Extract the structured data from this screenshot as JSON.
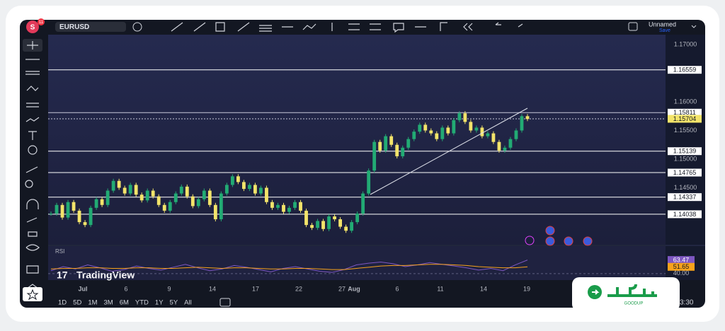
{
  "toolbar": {
    "avatar": "S",
    "badge": "11",
    "symbol": "EURUSD",
    "layout_name": "Unnamed",
    "save": "Save"
  },
  "chart_data": {
    "type": "candlestick",
    "up_color": "#22ab74",
    "down_color": "#f3e46a",
    "values": [
      1.1405,
      1.142,
      1.1398,
      1.1425,
      1.141,
      1.139,
      1.1385,
      1.1415,
      1.143,
      1.142,
      1.1445,
      1.1462,
      1.145,
      1.144,
      1.1455,
      1.1438,
      1.1428,
      1.1445,
      1.1435,
      1.142,
      1.141,
      1.1425,
      1.144,
      1.1452,
      1.1435,
      1.1418,
      1.143,
      1.1445,
      1.142,
      1.1395,
      1.144,
      1.1455,
      1.147,
      1.146,
      1.1448,
      1.1455,
      1.144,
      1.145,
      1.1425,
      1.1415,
      1.142,
      1.1408,
      1.1415,
      1.1425,
      1.141,
      1.1385,
      1.138,
      1.1392,
      1.1378,
      1.14,
      1.1395,
      1.1382,
      1.1375,
      1.139,
      1.1405,
      1.144,
      1.148,
      1.153,
      1.1515,
      1.154,
      1.1525,
      1.1505,
      1.152,
      1.1535,
      1.1548,
      1.156,
      1.155,
      1.1545,
      1.1535,
      1.1555,
      1.1545,
      1.1568,
      1.158,
      1.1565,
      1.155,
      1.1555,
      1.154,
      1.1545,
      1.153,
      1.1515,
      1.152,
      1.1535,
      1.155,
      1.1575,
      1.157
    ],
    "ylim": [
      1.13506,
      1.17173
    ],
    "yticks": [
      {
        "value": 1.17,
        "label": "1.17000"
      },
      {
        "value": 1.16,
        "label": "1.16000"
      },
      {
        "value": 1.155,
        "label": "1.15500"
      },
      {
        "value": 1.15,
        "label": "1.15000"
      },
      {
        "value": 1.145,
        "label": "1.14500"
      }
    ],
    "levels": [
      1.16559,
      1.15811,
      1.15704,
      1.15139,
      1.14765,
      1.14337,
      1.14038
    ],
    "x_labels": [
      "Jul",
      "6",
      "9",
      "14",
      "17",
      "22",
      "27",
      "Aug",
      "6",
      "11",
      "14",
      "19"
    ],
    "rsi": {
      "label": "RSI",
      "color": "#7e57c2",
      "ma_color": "#f7a21b",
      "values": [
        45,
        52,
        48,
        55,
        50,
        44,
        47,
        53,
        49,
        46,
        51,
        56,
        50,
        45,
        48,
        54,
        51,
        47,
        43,
        49,
        52,
        48,
        44,
        42,
        47,
        55,
        58,
        60,
        57,
        52,
        55,
        59,
        56,
        53,
        50,
        46,
        49,
        45,
        55,
        63.47
      ],
      "ma": [
        48,
        49,
        49,
        50,
        50,
        49,
        49,
        50,
        50,
        49,
        49,
        50,
        51,
        50,
        49,
        50,
        50,
        49,
        48,
        48,
        49,
        49,
        48,
        47,
        47,
        49,
        51,
        53,
        54,
        54,
        55,
        56,
        56,
        55,
        54,
        52,
        51,
        50,
        50,
        51.65
      ],
      "ylim": [
        30,
        85
      ],
      "yticks": [
        {
          "value": 40,
          "label": "40.00"
        }
      ]
    }
  },
  "timeframes": [
    "1D",
    "5D",
    "1M",
    "3M",
    "6M",
    "YTD",
    "1Y",
    "5Y",
    "All"
  ],
  "watermark": "TradingView",
  "clock": "3:30",
  "logo": "GOODUP"
}
